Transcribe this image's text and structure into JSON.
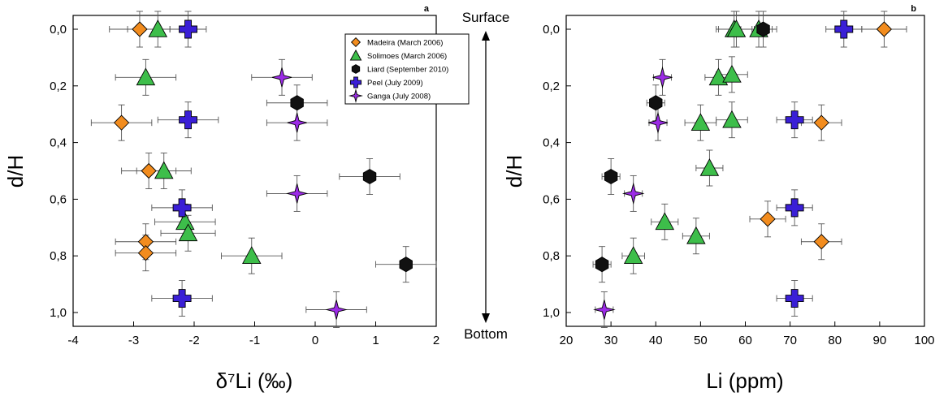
{
  "colors": {
    "madeira": "#F28C1E",
    "solimoes": "#3DBE4A",
    "liard": "#111111",
    "peel": "#3A1FD6",
    "ganga": "#9B2BE6"
  },
  "surface_label": "Surface",
  "bottom_label": "Bottom",
  "chart_data": [
    {
      "panel": "a",
      "type": "scatter",
      "xlabel": "δ⁷Li (‰)",
      "ylabel": "d/H",
      "xlim": [
        -4,
        2
      ],
      "ylim": [
        0,
        1
      ],
      "y_inverted": true,
      "xticks": [
        -4,
        -3,
        -2,
        -1,
        0,
        1,
        2
      ],
      "xtick_labels": [
        "-4",
        "-3",
        "-2",
        "-1",
        "0",
        "1",
        "2"
      ],
      "yticks": [
        0,
        0.2,
        0.4,
        0.6,
        0.8,
        1.0
      ],
      "ytick_labels": [
        "0,0",
        "0,2",
        "0,4",
        "0,6",
        "0,8",
        "1,0"
      ],
      "legend": {
        "position": "top-right",
        "entries": [
          {
            "label": "Madeira (March 2006)",
            "marker": "diamond",
            "color_key": "madeira"
          },
          {
            "label": "Solimoes (March 2006)",
            "marker": "triangle",
            "color_key": "solimoes"
          },
          {
            "label": "Liard (September 2010)",
            "marker": "hexagon",
            "color_key": "liard"
          },
          {
            "label": "Peel (July 2009)",
            "marker": "cross",
            "color_key": "peel"
          },
          {
            "label": "Ganga (July 2008)",
            "marker": "star",
            "color_key": "ganga"
          }
        ]
      },
      "series": [
        {
          "name": "Madeira (March 2006)",
          "marker": "diamond",
          "color_key": "madeira",
          "points": [
            [
              -2.9,
              0.0,
              0.5
            ],
            [
              -3.2,
              0.33,
              0.5
            ],
            [
              -2.75,
              0.5,
              0.45
            ],
            [
              -2.8,
              0.75,
              0.5
            ],
            [
              -2.8,
              0.79,
              0.5
            ]
          ]
        },
        {
          "name": "Solimoes (March 2006)",
          "marker": "triangle",
          "color_key": "solimoes",
          "points": [
            [
              -2.6,
              0.0,
              0.5
            ],
            [
              -2.8,
              0.17,
              0.5
            ],
            [
              -2.5,
              0.5,
              0.45
            ],
            [
              -2.15,
              0.68,
              0.5
            ],
            [
              -2.1,
              0.72,
              0.45
            ],
            [
              -1.05,
              0.8,
              0.5
            ]
          ]
        },
        {
          "name": "Liard (September 2010)",
          "marker": "hexagon",
          "color_key": "liard",
          "points": [
            [
              -0.3,
              0.26,
              0.5
            ],
            [
              0.9,
              0.52,
              0.5
            ],
            [
              1.5,
              0.83,
              0.5
            ]
          ]
        },
        {
          "name": "Peel (July 2009)",
          "marker": "cross",
          "color_key": "peel",
          "points": [
            [
              -2.1,
              0.0,
              0.3
            ],
            [
              -2.1,
              0.32,
              0.5
            ],
            [
              -2.2,
              0.63,
              0.5
            ],
            [
              -2.2,
              0.95,
              0.5
            ]
          ]
        },
        {
          "name": "Ganga (July 2008)",
          "marker": "star",
          "color_key": "ganga",
          "points": [
            [
              -0.55,
              0.17,
              0.5
            ],
            [
              -0.3,
              0.33,
              0.5
            ],
            [
              -0.3,
              0.58,
              0.5
            ],
            [
              0.35,
              0.99,
              0.5
            ]
          ]
        }
      ]
    },
    {
      "panel": "b",
      "type": "scatter",
      "xlabel": "Li (ppm)",
      "ylabel": "d/H",
      "xlim": [
        20,
        100
      ],
      "ylim": [
        0,
        1
      ],
      "y_inverted": true,
      "xticks": [
        20,
        30,
        40,
        50,
        60,
        70,
        80,
        90,
        100
      ],
      "xtick_labels": [
        "20",
        "30",
        "40",
        "50",
        "60",
        "70",
        "80",
        "90",
        "100"
      ],
      "yticks": [
        0,
        0.2,
        0.4,
        0.6,
        0.8,
        1.0
      ],
      "ytick_labels": [
        "0,0",
        "0,2",
        "0,4",
        "0,6",
        "0,8",
        "1,0"
      ],
      "series": [
        {
          "name": "Madeira (March 2006)",
          "marker": "diamond",
          "color_key": "madeira",
          "points": [
            [
              91,
              0.0,
              5
            ],
            [
              77,
              0.33,
              4.5
            ],
            [
              65,
              0.67,
              4
            ],
            [
              77,
              0.75,
              4.5
            ]
          ]
        },
        {
          "name": "Solimoes (March 2006)",
          "marker": "triangle",
          "color_key": "solimoes",
          "points": [
            [
              57.5,
              0.0,
              4
            ],
            [
              58,
              0.0,
              4
            ],
            [
              63,
              0.0,
              4
            ],
            [
              54,
              0.17,
              3
            ],
            [
              57,
              0.16,
              3.5
            ],
            [
              50,
              0.33,
              3.5
            ],
            [
              57,
              0.32,
              3.5
            ],
            [
              52,
              0.49,
              3
            ],
            [
              42,
              0.68,
              3
            ],
            [
              49,
              0.73,
              3
            ],
            [
              35,
              0.8,
              2.5
            ]
          ]
        },
        {
          "name": "Liard (September 2010)",
          "marker": "hexagon",
          "color_key": "liard",
          "points": [
            [
              64,
              0.0,
              2
            ],
            [
              40,
              0.26,
              2
            ],
            [
              30,
              0.52,
              2
            ],
            [
              28,
              0.83,
              2
            ]
          ]
        },
        {
          "name": "Peel (July 2009)",
          "marker": "cross",
          "color_key": "peel",
          "points": [
            [
              82,
              0.0,
              4
            ],
            [
              71,
              0.32,
              4
            ],
            [
              71,
              0.63,
              4
            ],
            [
              71,
              0.95,
              4
            ]
          ]
        },
        {
          "name": "Ganga (July 2008)",
          "marker": "star",
          "color_key": "ganga",
          "points": [
            [
              41.5,
              0.17,
              2
            ],
            [
              40.5,
              0.33,
              2
            ],
            [
              35,
              0.58,
              2
            ],
            [
              28.5,
              0.99,
              2
            ]
          ]
        }
      ]
    }
  ]
}
